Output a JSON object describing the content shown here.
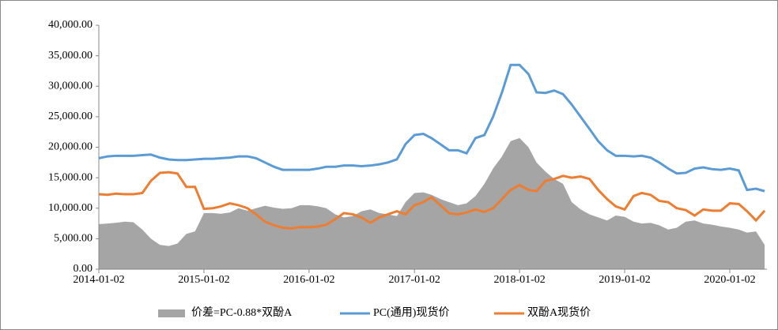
{
  "chart_data": {
    "type": "line",
    "x": [
      "2014-01-02",
      "2014-02-02",
      "2014-03-02",
      "2014-04-02",
      "2014-05-02",
      "2014-06-02",
      "2014-07-02",
      "2014-08-02",
      "2014-09-02",
      "2014-10-02",
      "2014-11-02",
      "2014-12-02",
      "2015-01-02",
      "2015-02-02",
      "2015-03-02",
      "2015-04-02",
      "2015-05-02",
      "2015-06-02",
      "2015-07-02",
      "2015-08-02",
      "2015-09-02",
      "2015-10-02",
      "2015-11-02",
      "2015-12-02",
      "2016-01-02",
      "2016-02-02",
      "2016-03-02",
      "2016-04-02",
      "2016-05-02",
      "2016-06-02",
      "2016-07-02",
      "2016-08-02",
      "2016-09-02",
      "2016-10-02",
      "2016-11-02",
      "2016-12-02",
      "2017-01-02",
      "2017-02-02",
      "2017-03-02",
      "2017-04-02",
      "2017-05-02",
      "2017-06-02",
      "2017-07-02",
      "2017-08-02",
      "2017-09-02",
      "2017-10-02",
      "2017-11-02",
      "2017-12-02",
      "2018-01-02",
      "2018-02-02",
      "2018-03-02",
      "2018-04-02",
      "2018-05-02",
      "2018-06-02",
      "2018-07-02",
      "2018-08-02",
      "2018-09-02",
      "2018-10-02",
      "2018-11-02",
      "2018-12-02",
      "2019-01-02",
      "2019-02-02",
      "2019-03-02",
      "2019-04-02",
      "2019-05-02",
      "2019-06-02",
      "2019-07-02",
      "2019-08-02",
      "2019-09-02",
      "2019-10-02",
      "2019-11-02",
      "2019-12-02",
      "2020-01-02",
      "2020-02-02",
      "2020-03-02",
      "2020-04-02",
      "2020-05-02"
    ],
    "series": [
      {
        "name": "价差=PC-0.88*双酚A",
        "kind": "area",
        "color": "#a5a5a5",
        "values": [
          7400,
          7500,
          7600,
          7800,
          7700,
          6500,
          5000,
          4000,
          3800,
          4200,
          5800,
          6200,
          9200,
          9200,
          9100,
          9300,
          10000,
          9600,
          10000,
          10400,
          10100,
          9900,
          10000,
          10500,
          10500,
          10300,
          10000,
          9000,
          8500,
          8700,
          9500,
          9800,
          9200,
          9000,
          8700,
          11000,
          12500,
          12600,
          12200,
          11500,
          11000,
          10500,
          10800,
          12000,
          14000,
          16500,
          18500,
          21000,
          21500,
          20000,
          17500,
          16000,
          14800,
          14000,
          11000,
          9800,
          9000,
          8500,
          8000,
          8800,
          8600,
          7800,
          7500,
          7600,
          7200,
          6500,
          6800,
          7800,
          8000,
          7500,
          7300,
          7000,
          6800,
          6500,
          6000,
          6200,
          4000
        ]
      },
      {
        "name": "PC(通用)现货价",
        "kind": "line",
        "color": "#5b9bd5",
        "values": [
          18200,
          18500,
          18600,
          18600,
          18600,
          18700,
          18800,
          18300,
          18000,
          17900,
          17900,
          18000,
          18100,
          18100,
          18200,
          18300,
          18500,
          18500,
          18200,
          17500,
          16800,
          16300,
          16300,
          16300,
          16300,
          16500,
          16800,
          16800,
          17000,
          17000,
          16900,
          17000,
          17200,
          17500,
          18000,
          20500,
          22000,
          22200,
          21500,
          20500,
          19500,
          19500,
          19000,
          21500,
          22000,
          25000,
          29000,
          33500,
          33500,
          32000,
          29000,
          28900,
          29300,
          28700,
          27000,
          25000,
          23000,
          21000,
          19500,
          18600,
          18600,
          18500,
          18600,
          18300,
          17500,
          16500,
          15700,
          15800,
          16500,
          16700,
          16400,
          16300,
          16500,
          16200,
          13000,
          13200,
          12800
        ]
      },
      {
        "name": "双酚A现货价",
        "kind": "line",
        "color": "#ed7d31",
        "values": [
          12300,
          12200,
          12400,
          12300,
          12300,
          12500,
          14500,
          15800,
          15900,
          15700,
          13500,
          13500,
          9900,
          10000,
          10300,
          10800,
          10500,
          10000,
          9000,
          7800,
          7200,
          6800,
          6700,
          6900,
          6900,
          7000,
          7300,
          8200,
          9200,
          9000,
          8500,
          7600,
          8500,
          9000,
          9500,
          9000,
          10500,
          11000,
          11800,
          10500,
          9200,
          9000,
          9300,
          9800,
          9400,
          10000,
          11500,
          13000,
          13800,
          13000,
          12800,
          14500,
          14800,
          15300,
          15000,
          15200,
          14800,
          13000,
          11500,
          10300,
          9800,
          12000,
          12500,
          12200,
          11200,
          11000,
          10000,
          9700,
          8800,
          9800,
          9600,
          9600,
          10800,
          10700,
          9500,
          8000,
          9600
        ]
      }
    ],
    "xlim": [
      "2014-01-02",
      "2020-05-10"
    ],
    "xticks": [
      "2014-01-02",
      "2015-01-02",
      "2016-01-02",
      "2017-01-02",
      "2018-01-02",
      "2019-01-02",
      "2020-01-02"
    ],
    "ylim": [
      0,
      40000
    ],
    "yticks": [
      {
        "value": 0,
        "label": "0.00"
      },
      {
        "value": 5000,
        "label": "5,000.00"
      },
      {
        "value": 10000,
        "label": "10,000.00"
      },
      {
        "value": 15000,
        "label": "15,000.00"
      },
      {
        "value": 20000,
        "label": "20,000.00"
      },
      {
        "value": 25000,
        "label": "25,000.00"
      },
      {
        "value": 30000,
        "label": "30,000.00"
      },
      {
        "value": 35000,
        "label": "35,000.00"
      },
      {
        "value": 40000,
        "label": "40,000.00"
      }
    ],
    "legend": "bottom"
  }
}
